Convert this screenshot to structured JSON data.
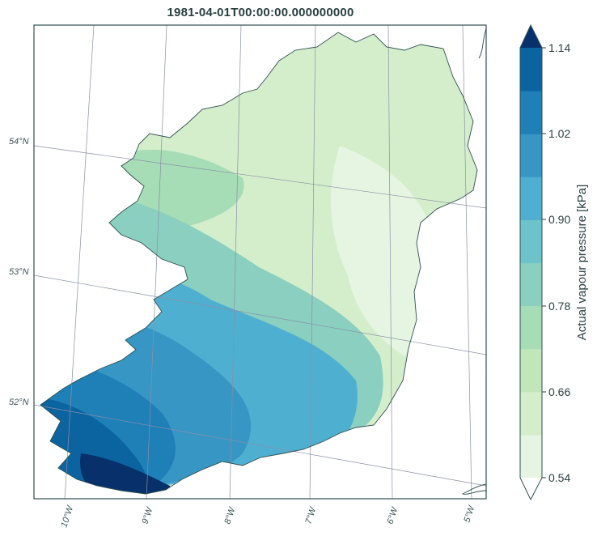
{
  "map": {
    "title": "1981-04-01T00:00:00.000000000",
    "lat_labels": [
      "54°N",
      "53°N",
      "52°N"
    ],
    "lon_labels": [
      "10°W",
      "9°W",
      "8°W",
      "7°W",
      "6°W",
      "5°W"
    ]
  },
  "colorbar": {
    "label": "Actual vapour pressure [kPa]",
    "ticks": [
      "1.14",
      "1.02",
      "0.90",
      "0.78",
      "0.66",
      "0.54"
    ],
    "colors": [
      "#e6f5e1",
      "#d4eecb",
      "#c1e6ba",
      "#a6dcb6",
      "#8acfbf",
      "#6cc3c9",
      "#4fafd1",
      "#3796c4",
      "#1f7fb7",
      "#0b64a0"
    ],
    "extend_color": "#08306b"
  },
  "palette": {
    "frame": "#2f4f4f",
    "graticule": "#8a8fa8",
    "coast": "#2f4f4f",
    "zones": [
      "#e6f5e1",
      "#d4eecb",
      "#a6dcb6",
      "#8acfbf",
      "#4fafd1",
      "#3796c4",
      "#1f7fb7",
      "#0b64a0"
    ]
  }
}
